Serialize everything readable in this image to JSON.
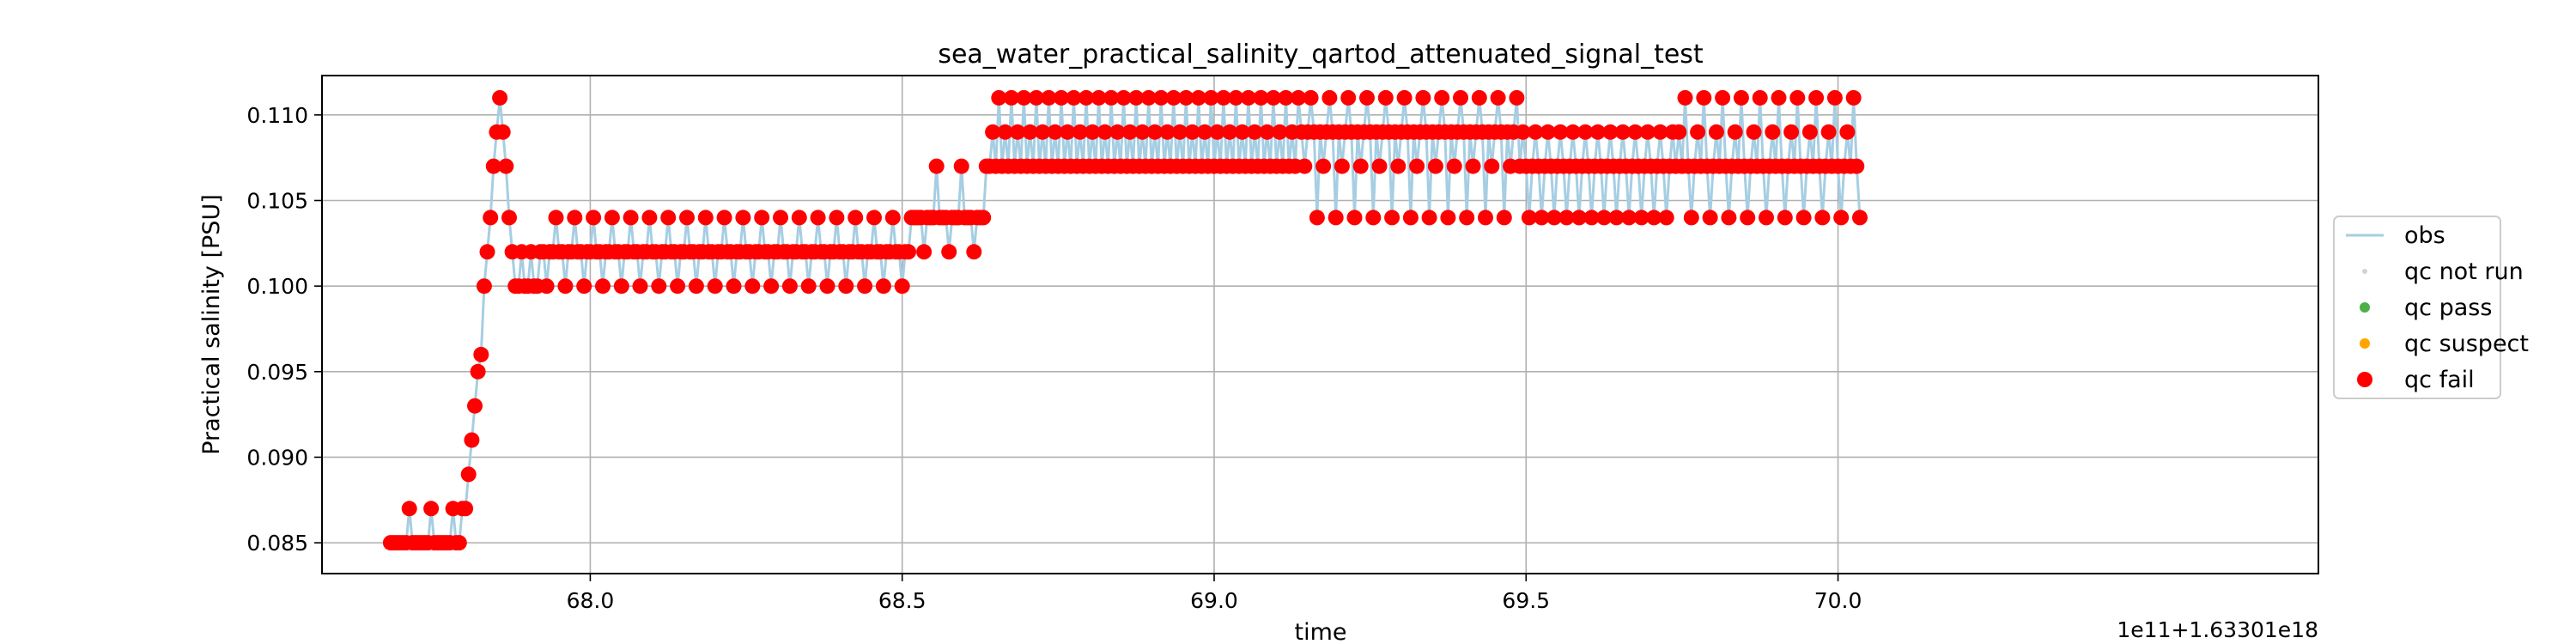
{
  "chart_data": {
    "type": "scatter",
    "title": "sea_water_practical_salinity_qartod_attenuated_signal_test",
    "xlabel": "time",
    "ylabel": "Practical salinity [PSU]",
    "x_offset_label": "1e11+1.63301e18",
    "xlim": [
      67.57,
      70.77
    ],
    "ylim": [
      0.0832,
      0.1123
    ],
    "xticks": [
      68.0,
      68.5,
      69.0,
      69.5,
      70.0
    ],
    "xtick_labels": [
      "68.0",
      "68.5",
      "69.0",
      "69.5",
      "70.0"
    ],
    "yticks": [
      0.085,
      0.09,
      0.095,
      0.1,
      0.105,
      0.11
    ],
    "ytick_labels": [
      "0.085",
      "0.090",
      "0.095",
      "0.100",
      "0.105",
      "0.110"
    ],
    "grid": true,
    "legend_position": "right",
    "colors": {
      "obs": "#a6cee3",
      "qc_not_run": "#d3d3d3",
      "qc_pass": "#4daf4a",
      "qc_suspect": "#ffa500",
      "qc_fail": "#ff0000"
    },
    "series": [
      {
        "name": "obs",
        "kind": "line",
        "x_start": 67.68,
        "x_step": 0.005
      },
      {
        "name": "qc not run",
        "kind": "marker",
        "values": []
      },
      {
        "name": "qc pass",
        "kind": "marker",
        "values": []
      },
      {
        "name": "qc suspect",
        "kind": "marker",
        "values": []
      },
      {
        "name": "qc fail",
        "kind": "marker",
        "x_start": 67.68,
        "x_step": 0.005
      }
    ],
    "y_segments": [
      {
        "level": 0.085,
        "count": 22,
        "alt": 0.087,
        "every": 7
      },
      {
        "ramp": [
          0.085,
          0.087,
          0.087,
          0.089,
          0.091,
          0.093,
          0.095,
          0.096,
          0.1,
          0.102,
          0.104,
          0.107,
          0.109,
          0.111,
          0.109,
          0.107,
          0.104,
          0.102
        ]
      },
      {
        "level": 0.1,
        "count": 8,
        "alt": 0.102,
        "every": 3
      },
      {
        "level": 0.102,
        "count": 120,
        "alt": [
          0.1,
          0.104
        ],
        "every": 3
      },
      {
        "level": 0.104,
        "count": 24,
        "alt": [
          0.102,
          0.107
        ],
        "every": 4
      },
      {
        "level": 0.107,
        "count": 100,
        "alt": [
          0.109,
          0.111
        ],
        "every": 2
      },
      {
        "level": 0.109,
        "count": 70,
        "alt": [
          0.107,
          0.111,
          0.104
        ],
        "every": 2
      },
      {
        "level": 0.107,
        "count": 50,
        "alt": [
          0.109,
          0.104
        ],
        "every": 2
      },
      {
        "level": 0.107,
        "count": 60,
        "alt": [
          0.109,
          0.111,
          0.104
        ],
        "every": 2
      }
    ]
  }
}
